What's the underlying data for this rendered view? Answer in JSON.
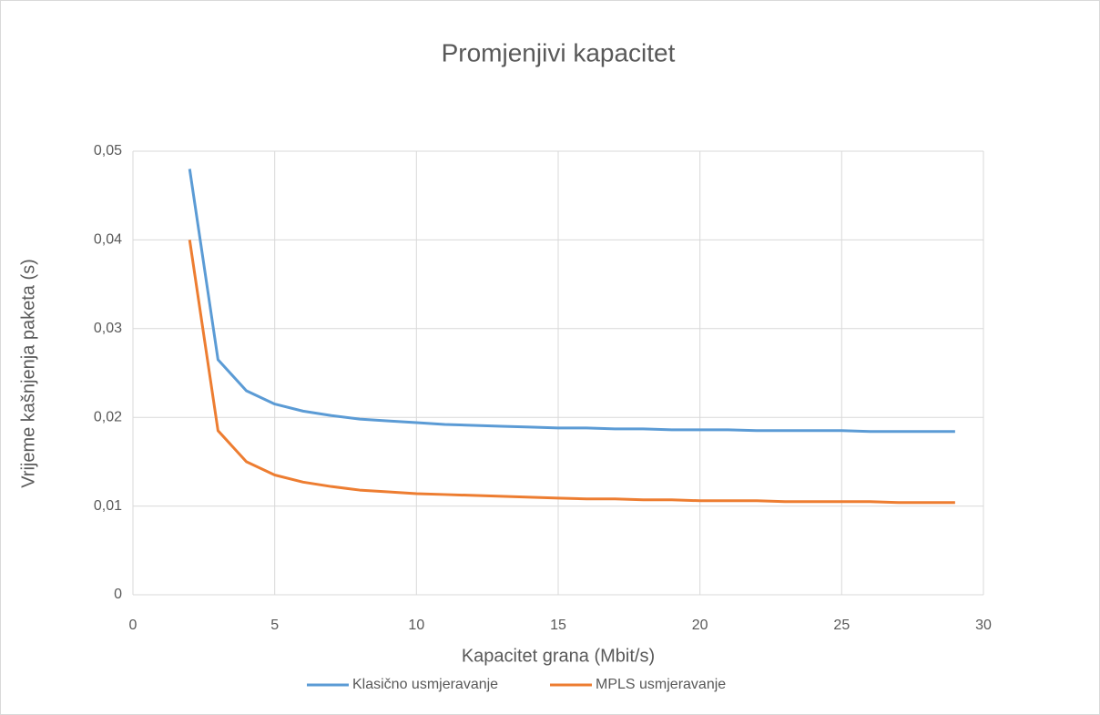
{
  "chart_data": {
    "type": "line",
    "title": "Promjenjivi kapacitet",
    "x_label": "Kapacitet grana (Mbit/s)",
    "y_label": "Vrijeme kašnjenja paketa (s)",
    "x": [
      2,
      3,
      4,
      5,
      6,
      7,
      8,
      9,
      10,
      11,
      12,
      13,
      14,
      15,
      16,
      17,
      18,
      19,
      20,
      21,
      22,
      23,
      24,
      25,
      26,
      27,
      28,
      29
    ],
    "series": [
      {
        "name": "Klasično usmjeravanje",
        "color": "#5b9bd5",
        "values": [
          0.048,
          0.0265,
          0.023,
          0.0215,
          0.0207,
          0.0202,
          0.0198,
          0.0196,
          0.0194,
          0.0192,
          0.0191,
          0.019,
          0.0189,
          0.0188,
          0.0188,
          0.0187,
          0.0187,
          0.0186,
          0.0186,
          0.0186,
          0.0185,
          0.0185,
          0.0185,
          0.0185,
          0.0184,
          0.0184,
          0.0184,
          0.0184
        ]
      },
      {
        "name": "MPLS usmjeravanje",
        "color": "#ed7d31",
        "values": [
          0.04,
          0.0185,
          0.015,
          0.0135,
          0.0127,
          0.0122,
          0.0118,
          0.0116,
          0.0114,
          0.0113,
          0.0112,
          0.0111,
          0.011,
          0.0109,
          0.0108,
          0.0108,
          0.0107,
          0.0107,
          0.0106,
          0.0106,
          0.0106,
          0.0105,
          0.0105,
          0.0105,
          0.0105,
          0.0104,
          0.0104,
          0.0104
        ]
      }
    ],
    "xlim": [
      0,
      30
    ],
    "xticks": [
      0,
      5,
      10,
      15,
      20,
      25,
      30
    ],
    "ylim": [
      0,
      0.05
    ],
    "yticks": [
      0,
      {
        "value": 0.01,
        "label": "0,01"
      },
      {
        "value": 0.02,
        "label": "0,02"
      },
      {
        "value": 0.03,
        "label": "0,03"
      },
      {
        "value": 0.04,
        "label": "0,04"
      },
      {
        "value": 0.05,
        "label": "0,05"
      }
    ],
    "grid": true,
    "legend": "bottom"
  }
}
